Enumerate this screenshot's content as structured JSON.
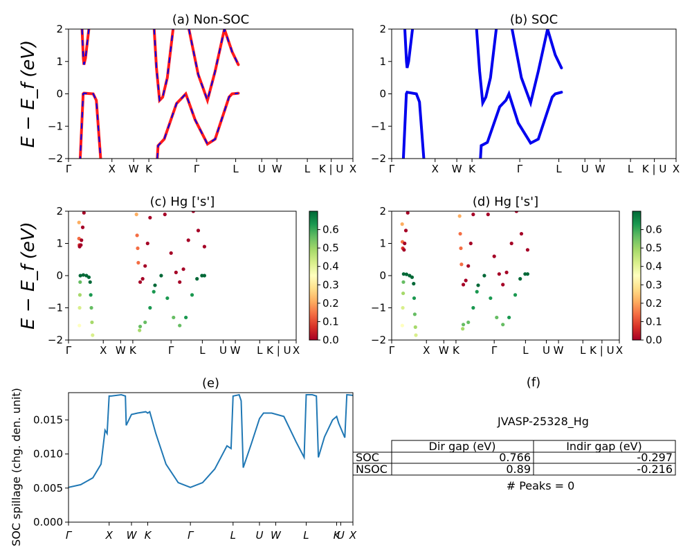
{
  "figure_id": "JVASP-25328_Hg",
  "kpath_labels": [
    "Γ",
    "X",
    "W",
    "K",
    "Γ",
    "L",
    "U",
    "W",
    "L",
    "K | U",
    "X"
  ],
  "kpath_labels_italic": [
    "Γ",
    "X",
    "W",
    "K",
    "Γ",
    "L",
    "U",
    "W",
    "L",
    "K",
    "U",
    "X"
  ],
  "band_ylabel": "E − E_f (eV)",
  "colorbar_ticks": [
    "0.0",
    "0.1",
    "0.2",
    "0.3",
    "0.4",
    "0.5",
    "0.6"
  ],
  "colors": {
    "soc_line": "#0000ee",
    "nonsoc_line": "#ff1a1a",
    "spillage_line": "#1f77b4",
    "colormap": [
      "#a50026",
      "#d73027",
      "#f46d43",
      "#fdae61",
      "#fee08b",
      "#ffffbf",
      "#d9ef8b",
      "#a6d96a",
      "#66bd63",
      "#1a9850",
      "#006837"
    ]
  },
  "chart_data": [
    {
      "panel": "a",
      "type": "line",
      "title": "(a) Non-SOC",
      "ylabel": "E − E_f (eV)",
      "ylim": [
        -2,
        2
      ],
      "yticks": [
        -2,
        -1,
        0,
        1,
        2
      ],
      "series": [
        {
          "style": "red solid with blue dashes",
          "segments": [
            [
              [
                0.75,
                -2.1
              ],
              [
                0.95,
                0.0
              ],
              [
                1.0,
                0.02
              ],
              [
                1.6,
                0.0
              ],
              [
                1.8,
                -0.2
              ],
              [
                2.1,
                -2.1
              ]
            ],
            [
              [
                0.88,
                2.0
              ],
              [
                0.96,
                1.1
              ],
              [
                1.0,
                0.9
              ],
              [
                1.1,
                1.1
              ],
              [
                1.32,
                2.0
              ]
            ],
            [
              [
                5.75,
                -2.0
              ],
              [
                5.8,
                -1.6
              ],
              [
                6.2,
                -1.4
              ],
              [
                7.0,
                -0.3
              ],
              [
                7.4,
                -0.1
              ],
              [
                7.6,
                0.0
              ],
              [
                8.2,
                -0.8
              ],
              [
                9.0,
                -1.55
              ],
              [
                9.5,
                -1.4
              ],
              [
                10.4,
                -0.1
              ],
              [
                10.6,
                0.0
              ],
              [
                11.0,
                0.02
              ]
            ],
            [
              [
                5.55,
                2.0
              ],
              [
                5.7,
                0.8
              ],
              [
                5.9,
                -0.2
              ],
              [
                6.1,
                -0.1
              ],
              [
                6.4,
                0.5
              ],
              [
                6.8,
                2.1
              ]
            ],
            [
              [
                7.8,
                2.0
              ],
              [
                8.4,
                0.6
              ],
              [
                9.0,
                -0.2
              ],
              [
                9.5,
                0.7
              ],
              [
                10.1,
                2.0
              ],
              [
                10.6,
                1.3
              ],
              [
                11.0,
                0.9
              ]
            ]
          ]
        }
      ]
    },
    {
      "panel": "b",
      "type": "line",
      "title": "(b) SOC",
      "ylim": [
        -2,
        2
      ],
      "yticks": [
        -2,
        -1,
        0,
        1,
        2
      ],
      "series": [
        {
          "style": "blue solid",
          "segments": [
            [
              [
                0.75,
                -2.1
              ],
              [
                0.95,
                0.0
              ],
              [
                1.0,
                0.05
              ],
              [
                1.6,
                0.0
              ],
              [
                1.8,
                -0.25
              ],
              [
                2.1,
                -2.1
              ]
            ],
            [
              [
                0.85,
                2.0
              ],
              [
                0.96,
                1.0
              ],
              [
                1.0,
                0.8
              ],
              [
                1.1,
                1.0
              ],
              [
                1.35,
                2.0
              ]
            ],
            [
              [
                5.75,
                -2.0
              ],
              [
                5.8,
                -1.6
              ],
              [
                6.2,
                -1.5
              ],
              [
                7.0,
                -0.4
              ],
              [
                7.4,
                -0.2
              ],
              [
                7.6,
                0.0
              ],
              [
                8.2,
                -0.9
              ],
              [
                9.0,
                -1.52
              ],
              [
                9.5,
                -1.4
              ],
              [
                10.4,
                -0.1
              ],
              [
                10.6,
                0.0
              ],
              [
                11.0,
                0.05
              ]
            ],
            [
              [
                5.5,
                2.0
              ],
              [
                5.7,
                0.7
              ],
              [
                5.9,
                -0.28
              ],
              [
                6.1,
                -0.1
              ],
              [
                6.4,
                0.5
              ],
              [
                6.8,
                2.1
              ]
            ],
            [
              [
                7.8,
                2.0
              ],
              [
                8.4,
                0.5
              ],
              [
                9.0,
                -0.28
              ],
              [
                9.5,
                0.7
              ],
              [
                10.1,
                2.0
              ],
              [
                10.6,
                1.2
              ],
              [
                11.0,
                0.8
              ]
            ]
          ]
        }
      ]
    },
    {
      "panel": "c",
      "type": "scatter",
      "title": "(c)  Hg ['s']",
      "ylim": [
        -2,
        2
      ],
      "yticks": [
        -2,
        -1,
        0,
        1,
        2
      ],
      "colorbar": {
        "range": [
          0.0,
          0.7
        ],
        "ticks": [
          0.0,
          0.1,
          0.2,
          0.3,
          0.4,
          0.5,
          0.6
        ]
      },
      "points": [
        [
          0.85,
          1.65,
          0.18
        ],
        [
          0.85,
          1.15,
          0.15
        ],
        [
          0.88,
          0.95,
          0.05
        ],
        [
          0.9,
          0.9,
          0.02
        ],
        [
          1.0,
          0.95,
          0.0
        ],
        [
          1.05,
          1.1,
          0.0
        ],
        [
          1.15,
          1.5,
          0.0
        ],
        [
          1.25,
          1.95,
          0.0
        ],
        [
          0.88,
          -1.55,
          0.35
        ],
        [
          0.9,
          -1.0,
          0.42
        ],
        [
          0.92,
          -0.6,
          0.48
        ],
        [
          0.94,
          -0.2,
          0.55
        ],
        [
          0.96,
          0.0,
          0.7
        ],
        [
          1.2,
          0.02,
          0.7
        ],
        [
          1.45,
          0.0,
          0.7
        ],
        [
          1.65,
          -0.05,
          0.7
        ],
        [
          1.75,
          -0.2,
          0.68
        ],
        [
          1.8,
          -0.6,
          0.62
        ],
        [
          1.85,
          -1.0,
          0.58
        ],
        [
          1.9,
          -1.45,
          0.5
        ],
        [
          1.95,
          -1.85,
          0.45
        ],
        [
          5.5,
          1.9,
          0.18
        ],
        [
          5.55,
          1.25,
          0.16
        ],
        [
          5.6,
          0.85,
          0.15
        ],
        [
          5.65,
          0.4,
          0.12
        ],
        [
          5.8,
          -0.2,
          0.02
        ],
        [
          6.0,
          -0.1,
          0.0
        ],
        [
          6.2,
          0.3,
          0.0
        ],
        [
          6.4,
          1.0,
          0.0
        ],
        [
          6.6,
          1.8,
          0.0
        ],
        [
          5.75,
          -1.7,
          0.5
        ],
        [
          5.8,
          -1.58,
          0.55
        ],
        [
          6.2,
          -1.45,
          0.55
        ],
        [
          6.6,
          -1.0,
          0.6
        ],
        [
          6.9,
          -0.5,
          0.65
        ],
        [
          7.0,
          -0.3,
          0.68
        ],
        [
          7.5,
          0.0,
          0.7
        ],
        [
          8.0,
          -0.7,
          0.62
        ],
        [
          8.5,
          -1.3,
          0.58
        ],
        [
          9.0,
          -1.55,
          0.55
        ],
        [
          9.5,
          -1.3,
          0.6
        ],
        [
          10.0,
          -0.6,
          0.65
        ],
        [
          10.4,
          -0.1,
          0.7
        ],
        [
          10.8,
          0.0,
          0.7
        ],
        [
          11.0,
          0.0,
          0.7
        ],
        [
          7.8,
          1.9,
          0.0
        ],
        [
          8.3,
          0.7,
          0.0
        ],
        [
          8.7,
          0.1,
          0.0
        ],
        [
          9.0,
          -0.2,
          0.0
        ],
        [
          9.3,
          0.2,
          0.0
        ],
        [
          9.7,
          1.1,
          0.0
        ],
        [
          10.1,
          2.0,
          0.0
        ],
        [
          10.5,
          1.4,
          0.0
        ],
        [
          11.0,
          0.9,
          0.0
        ]
      ]
    },
    {
      "panel": "d",
      "type": "scatter",
      "title": "(d) Hg ['s']",
      "ylim": [
        -2,
        2
      ],
      "yticks": [
        -2,
        -1,
        0,
        1,
        2
      ],
      "colorbar": {
        "range": [
          0.0,
          0.7
        ],
        "ticks": [
          0.0,
          0.1,
          0.2,
          0.3,
          0.4,
          0.5,
          0.6
        ]
      },
      "points": [
        [
          0.85,
          1.6,
          0.2
        ],
        [
          0.87,
          1.05,
          0.15
        ],
        [
          0.9,
          0.85,
          0.04
        ],
        [
          1.0,
          0.8,
          0.0
        ],
        [
          1.05,
          1.0,
          0.0
        ],
        [
          1.15,
          1.4,
          0.0
        ],
        [
          1.3,
          1.95,
          0.0
        ],
        [
          0.86,
          -1.55,
          0.35
        ],
        [
          0.9,
          -1.0,
          0.42
        ],
        [
          0.93,
          -0.55,
          0.5
        ],
        [
          0.95,
          -0.2,
          0.55
        ],
        [
          0.97,
          0.05,
          0.7
        ],
        [
          1.2,
          0.04,
          0.7
        ],
        [
          1.45,
          0.0,
          0.7
        ],
        [
          1.65,
          -0.05,
          0.7
        ],
        [
          1.78,
          -0.25,
          0.68
        ],
        [
          1.82,
          -0.7,
          0.62
        ],
        [
          1.87,
          -1.2,
          0.55
        ],
        [
          1.92,
          -1.6,
          0.5
        ],
        [
          1.96,
          -1.85,
          0.45
        ],
        [
          5.5,
          1.85,
          0.18
        ],
        [
          5.55,
          1.3,
          0.16
        ],
        [
          5.6,
          0.85,
          0.15
        ],
        [
          5.65,
          0.35,
          0.12
        ],
        [
          5.8,
          -0.28,
          0.02
        ],
        [
          6.0,
          -0.15,
          0.0
        ],
        [
          6.2,
          0.3,
          0.0
        ],
        [
          6.4,
          1.0,
          0.0
        ],
        [
          6.6,
          1.9,
          0.0
        ],
        [
          5.75,
          -1.65,
          0.5
        ],
        [
          5.8,
          -1.52,
          0.55
        ],
        [
          6.2,
          -1.45,
          0.55
        ],
        [
          6.6,
          -1.0,
          0.6
        ],
        [
          6.9,
          -0.5,
          0.65
        ],
        [
          7.0,
          -0.3,
          0.68
        ],
        [
          7.5,
          0.0,
          0.7
        ],
        [
          8.0,
          -0.7,
          0.62
        ],
        [
          8.5,
          -1.3,
          0.58
        ],
        [
          9.0,
          -1.52,
          0.55
        ],
        [
          9.5,
          -1.3,
          0.6
        ],
        [
          10.0,
          -0.6,
          0.65
        ],
        [
          10.4,
          -0.1,
          0.7
        ],
        [
          10.8,
          0.05,
          0.7
        ],
        [
          11.0,
          0.05,
          0.7
        ],
        [
          7.8,
          1.9,
          0.0
        ],
        [
          8.3,
          0.6,
          0.0
        ],
        [
          8.7,
          0.05,
          0.0
        ],
        [
          9.0,
          -0.28,
          0.0
        ],
        [
          9.3,
          0.1,
          0.0
        ],
        [
          9.7,
          1.0,
          0.0
        ],
        [
          10.1,
          2.0,
          0.0
        ],
        [
          10.5,
          1.3,
          0.0
        ],
        [
          11.0,
          0.8,
          0.0
        ]
      ]
    },
    {
      "panel": "e",
      "type": "line",
      "title": "(e)",
      "ylabel": "SOC spillage (chg. den. unit)",
      "ylim": [
        0.0,
        0.019
      ],
      "yticks": [
        "0.000",
        "0.005",
        "0.010",
        "0.015"
      ],
      "xticks": [
        "Γ",
        "X",
        "W",
        "K",
        "Γ",
        "L",
        "U",
        "W",
        "L",
        "K",
        "U",
        "X"
      ],
      "values": [
        [
          0.0,
          0.0051
        ],
        [
          0.3,
          0.0055
        ],
        [
          0.6,
          0.0065
        ],
        [
          0.8,
          0.0085
        ],
        [
          0.9,
          0.0135
        ],
        [
          0.95,
          0.013
        ],
        [
          1.0,
          0.0185
        ],
        [
          1.05,
          0.0185
        ],
        [
          1.3,
          0.0187
        ],
        [
          1.4,
          0.0185
        ],
        [
          1.42,
          0.0142
        ],
        [
          1.55,
          0.0158
        ],
        [
          1.7,
          0.016
        ],
        [
          1.9,
          0.0162
        ],
        [
          1.95,
          0.016
        ],
        [
          2.0,
          0.0162
        ],
        [
          2.15,
          0.013
        ],
        [
          2.4,
          0.0085
        ],
        [
          2.7,
          0.0058
        ],
        [
          3.0,
          0.0051
        ],
        [
          3.3,
          0.0058
        ],
        [
          3.6,
          0.0078
        ],
        [
          3.9,
          0.0112
        ],
        [
          4.0,
          0.0108
        ],
        [
          4.05,
          0.0185
        ],
        [
          4.2,
          0.0187
        ],
        [
          4.25,
          0.0178
        ],
        [
          4.3,
          0.008
        ],
        [
          4.5,
          0.0115
        ],
        [
          4.7,
          0.0152
        ],
        [
          4.8,
          0.016
        ],
        [
          5.0,
          0.016
        ],
        [
          5.3,
          0.0155
        ],
        [
          5.6,
          0.0118
        ],
        [
          5.8,
          0.0095
        ],
        [
          5.85,
          0.0187
        ],
        [
          6.0,
          0.0187
        ],
        [
          6.1,
          0.0185
        ],
        [
          6.15,
          0.0095
        ],
        [
          6.3,
          0.0125
        ],
        [
          6.5,
          0.015
        ],
        [
          6.6,
          0.0155
        ],
        [
          6.65,
          0.0145
        ],
        [
          6.8,
          0.0124
        ],
        [
          6.85,
          0.0187
        ],
        [
          7.0,
          0.0186
        ]
      ]
    }
  ],
  "summary": {
    "title": "(f)",
    "material_label": "JVASP-25328_Hg",
    "columns": [
      "Dir gap (eV)",
      "Indir gap (eV)"
    ],
    "rows": [
      {
        "label": "SOC",
        "dir": "0.766",
        "indir": "-0.297"
      },
      {
        "label": "NSOC",
        "dir": "0.89",
        "indir": "-0.216"
      }
    ],
    "peaks_label": "# Peaks = 0"
  }
}
